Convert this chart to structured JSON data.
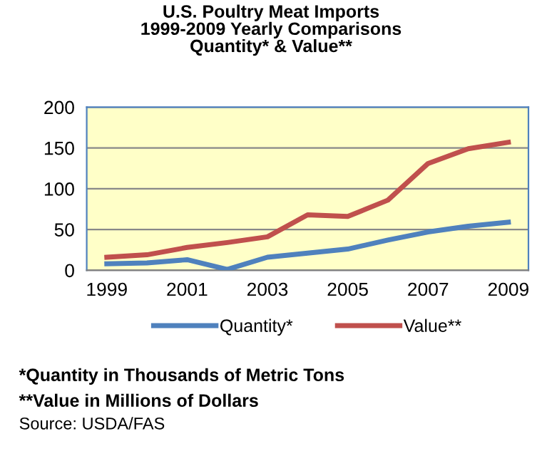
{
  "chart_data": {
    "type": "line",
    "title": "U.S. Poultry Meat Imports\n1999-2009 Yearly Comparisons\nQuantity* & Value**",
    "x": [
      1999,
      2000,
      2001,
      2002,
      2003,
      2004,
      2005,
      2006,
      2007,
      2008,
      2009
    ],
    "series": [
      {
        "name": "Quantity*",
        "color": "#4f81bd",
        "values": [
          8,
          9,
          13,
          1,
          16,
          21,
          26,
          37,
          47,
          54,
          59
        ]
      },
      {
        "name": "Value**",
        "color": "#c0504d",
        "values": [
          16,
          19,
          28,
          34,
          41,
          68,
          66,
          86,
          131,
          149,
          157
        ]
      }
    ],
    "xlim": [
      1998.5,
      2009.5
    ],
    "xticks": [
      1999,
      2001,
      2003,
      2005,
      2007,
      2009
    ],
    "ylim": [
      0,
      200
    ],
    "yticks": [
      0,
      50,
      100,
      150,
      200
    ],
    "grid": "y",
    "legend": "bottom",
    "marker": "none",
    "line_style": "solid",
    "annotations": [
      "*Quantity in Thousands of Metric Tons",
      "**Value in Millions of Dollars",
      "Source: USDA/FAS"
    ]
  }
}
